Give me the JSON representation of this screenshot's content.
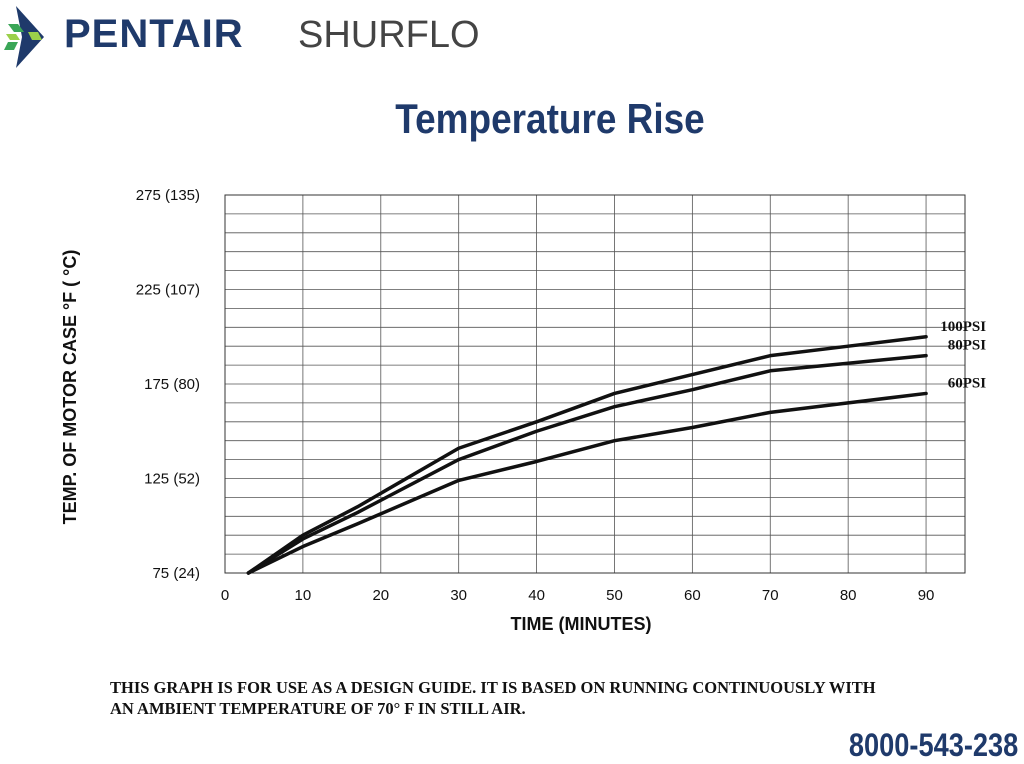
{
  "brand": {
    "name": "PENTAIR",
    "sub": "SHURFLO",
    "accent": "#1f3a6b",
    "logo_colors": [
      "#1f3a6b",
      "#3aa657",
      "#9bd04a"
    ]
  },
  "footer": {
    "note_line1": "THIS GRAPH IS FOR USE AS A DESIGN GUIDE.  IT IS BASED ON RUNNING CONTINUOUSLY WITH",
    "note_line2": "AN AMBIENT TEMPERATURE OF 70° F IN STILL AIR.",
    "phone": "8000-543-238"
  },
  "chart_data": {
    "type": "line",
    "title": "Temperature Rise",
    "xlabel": "TIME (MINUTES)",
    "ylabel": "TEMP. OF MOTOR CASE   °F ( °C)",
    "xlim": [
      0,
      95
    ],
    "ylim": [
      75,
      275
    ],
    "x_ticks": [
      0,
      10,
      20,
      30,
      40,
      50,
      60,
      70,
      80,
      90
    ],
    "y_ticks": [
      {
        "value": 75,
        "label": "75  (24)"
      },
      {
        "value": 125,
        "label": "125  (52)"
      },
      {
        "value": 175,
        "label": "175  (80)"
      },
      {
        "value": 225,
        "label": "225 (107)"
      },
      {
        "value": 275,
        "label": "275  (135)"
      }
    ],
    "grid": true,
    "series": [
      {
        "name": "100PSI",
        "x": [
          3,
          10,
          17,
          30,
          40,
          50,
          60,
          70,
          80,
          90
        ],
        "y": [
          75,
          95,
          110,
          141,
          155,
          170,
          180,
          190,
          195,
          200
        ]
      },
      {
        "name": "80PSI",
        "x": [
          3,
          10,
          17,
          30,
          40,
          50,
          60,
          70,
          80,
          90
        ],
        "y": [
          75,
          93,
          107,
          135,
          150,
          163,
          172,
          182,
          186,
          190
        ]
      },
      {
        "name": "60PSI",
        "x": [
          3,
          10,
          17,
          30,
          40,
          50,
          60,
          70,
          80,
          90
        ],
        "y": [
          75,
          89,
          101,
          124,
          134,
          145,
          152,
          160,
          165,
          170
        ]
      }
    ]
  }
}
